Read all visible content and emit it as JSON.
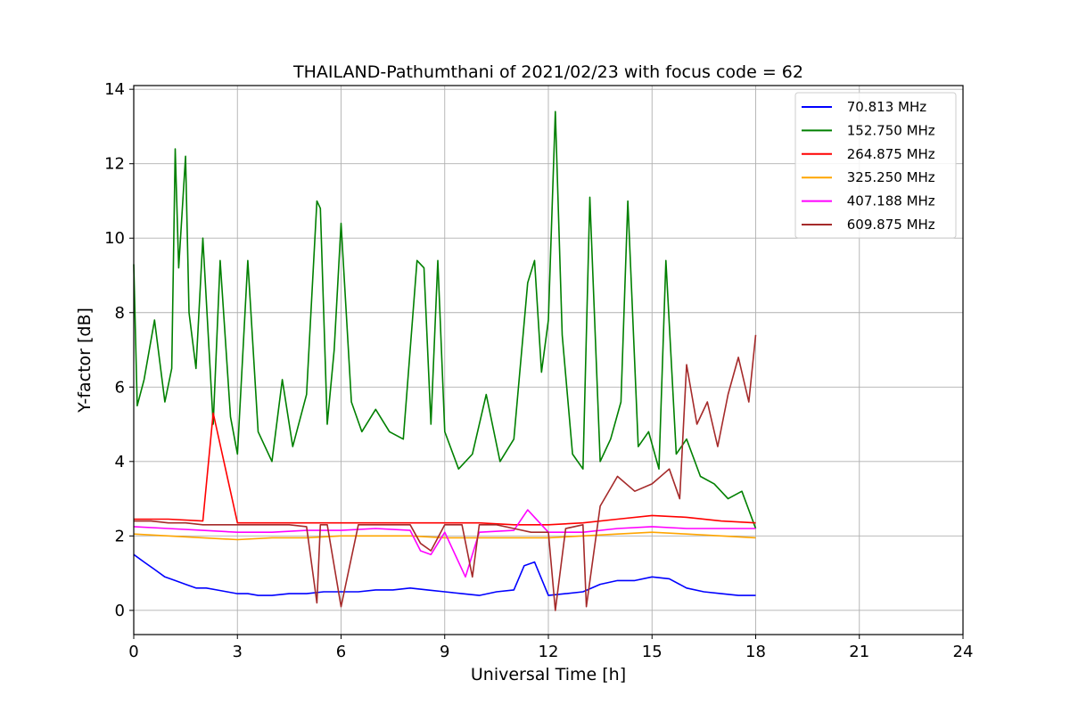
{
  "chart_data": {
    "type": "line",
    "title": "THAILAND-Pathumthani of 2021/02/23 with focus code = 62",
    "xlabel": "Universal Time [h]",
    "ylabel": "Y-factor [dB]",
    "xlim": [
      0,
      24
    ],
    "ylim": [
      -0.65,
      14.1
    ],
    "xticks": [
      0,
      3,
      6,
      9,
      12,
      15,
      18,
      21,
      24
    ],
    "yticks": [
      0,
      2,
      4,
      6,
      8,
      10,
      12,
      14
    ],
    "grid": true,
    "legend_position": "top-right",
    "series": [
      {
        "name": " 70.813 MHz",
        "color": "#0000ff",
        "x": [
          0,
          0.3,
          0.6,
          0.9,
          1.2,
          1.5,
          1.8,
          2.1,
          2.4,
          2.7,
          3.0,
          3.3,
          3.6,
          4.0,
          4.5,
          5.0,
          5.5,
          6.0,
          6.5,
          7.0,
          7.5,
          8.0,
          8.5,
          9.0,
          9.5,
          10.0,
          10.5,
          11.0,
          11.3,
          11.6,
          12.0,
          12.5,
          13.0,
          13.5,
          14.0,
          14.5,
          15.0,
          15.5,
          16.0,
          16.5,
          17.0,
          17.5,
          18.0
        ],
        "y": [
          1.5,
          1.3,
          1.1,
          0.9,
          0.8,
          0.7,
          0.6,
          0.6,
          0.55,
          0.5,
          0.45,
          0.45,
          0.4,
          0.4,
          0.45,
          0.45,
          0.5,
          0.5,
          0.5,
          0.55,
          0.55,
          0.6,
          0.55,
          0.5,
          0.45,
          0.4,
          0.5,
          0.55,
          1.2,
          1.3,
          0.4,
          0.45,
          0.5,
          0.7,
          0.8,
          0.8,
          0.9,
          0.85,
          0.6,
          0.5,
          0.45,
          0.4,
          0.4
        ]
      },
      {
        "name": " 152.750 MHz",
        "color": "#008000",
        "x": [
          0,
          0.1,
          0.3,
          0.6,
          0.9,
          1.1,
          1.2,
          1.3,
          1.5,
          1.6,
          1.8,
          2.0,
          2.3,
          2.5,
          2.8,
          3.0,
          3.3,
          3.6,
          4.0,
          4.3,
          4.6,
          5.0,
          5.3,
          5.4,
          5.6,
          5.8,
          6.0,
          6.3,
          6.6,
          7.0,
          7.4,
          7.8,
          8.2,
          8.4,
          8.6,
          8.8,
          9.0,
          9.4,
          9.8,
          10.2,
          10.6,
          11.0,
          11.4,
          11.6,
          11.8,
          12.0,
          12.2,
          12.4,
          12.7,
          13.0,
          13.2,
          13.5,
          13.8,
          14.1,
          14.3,
          14.6,
          14.9,
          15.2,
          15.4,
          15.7,
          16.0,
          16.4,
          16.8,
          17.2,
          17.6,
          18.0
        ],
        "y": [
          9.3,
          5.5,
          6.2,
          7.8,
          5.6,
          6.5,
          12.4,
          9.2,
          12.2,
          8.0,
          6.5,
          10.0,
          5.0,
          9.4,
          5.2,
          4.2,
          9.4,
          4.8,
          4.0,
          6.2,
          4.4,
          5.8,
          11.0,
          10.8,
          5.0,
          7.0,
          10.4,
          5.6,
          4.8,
          5.4,
          4.8,
          4.6,
          9.4,
          9.2,
          5.0,
          9.4,
          4.8,
          3.8,
          4.2,
          5.8,
          4.0,
          4.6,
          8.8,
          9.4,
          6.4,
          7.8,
          13.4,
          7.4,
          4.2,
          3.8,
          11.1,
          4.0,
          4.6,
          5.6,
          11.0,
          4.4,
          4.8,
          3.8,
          9.4,
          4.2,
          4.6,
          3.6,
          3.4,
          3.0,
          3.2,
          2.2
        ]
      },
      {
        "name": " 264.875 MHz",
        "color": "#ff0000",
        "x": [
          0,
          1.0,
          2.0,
          2.3,
          3.0,
          4.0,
          5.0,
          6.0,
          7.0,
          8.0,
          9.0,
          10.0,
          11.0,
          12.0,
          13.0,
          14.0,
          15.0,
          16.0,
          17.0,
          18.0
        ],
        "y": [
          2.45,
          2.45,
          2.4,
          5.3,
          2.35,
          2.35,
          2.35,
          2.35,
          2.35,
          2.35,
          2.35,
          2.35,
          2.3,
          2.3,
          2.35,
          2.45,
          2.55,
          2.5,
          2.4,
          2.35
        ]
      },
      {
        "name": " 325.250 MHz",
        "color": "#ffa500",
        "x": [
          0,
          1.0,
          2.0,
          3.0,
          4.0,
          5.0,
          6.0,
          7.0,
          8.0,
          9.0,
          10.0,
          11.0,
          12.0,
          13.0,
          14.0,
          15.0,
          16.0,
          17.0,
          18.0
        ],
        "y": [
          2.05,
          2.0,
          1.95,
          1.9,
          1.95,
          1.95,
          2.0,
          2.0,
          2.0,
          1.95,
          1.95,
          1.95,
          1.95,
          2.0,
          2.05,
          2.1,
          2.05,
          2.0,
          1.95
        ]
      },
      {
        "name": " 407.188 MHz",
        "color": "#ff00ff",
        "x": [
          0,
          1.0,
          2.0,
          3.0,
          4.0,
          5.0,
          6.0,
          7.0,
          8.0,
          8.3,
          8.6,
          9.0,
          9.6,
          10.0,
          11.0,
          11.4,
          12.0,
          13.0,
          14.0,
          15.0,
          16.0,
          17.0,
          18.0
        ],
        "y": [
          2.25,
          2.2,
          2.15,
          2.1,
          2.1,
          2.15,
          2.15,
          2.2,
          2.15,
          1.6,
          1.5,
          2.1,
          0.9,
          2.1,
          2.15,
          2.7,
          2.1,
          2.1,
          2.2,
          2.25,
          2.2,
          2.2,
          2.2
        ]
      },
      {
        "name": " 609.875 MHz",
        "color": "#a52a2a",
        "x": [
          0,
          0.5,
          1.0,
          1.5,
          2.0,
          2.5,
          3.0,
          3.5,
          4.0,
          4.5,
          5.0,
          5.3,
          5.4,
          5.6,
          6.0,
          6.5,
          7.0,
          7.5,
          8.0,
          8.3,
          8.6,
          9.0,
          9.5,
          9.8,
          10.0,
          10.5,
          11.0,
          11.5,
          12.0,
          12.2,
          12.5,
          13.0,
          13.1,
          13.5,
          14.0,
          14.5,
          15.0,
          15.5,
          15.8,
          16.0,
          16.3,
          16.6,
          16.9,
          17.2,
          17.5,
          17.8,
          18.0
        ],
        "y": [
          2.4,
          2.4,
          2.35,
          2.35,
          2.3,
          2.3,
          2.3,
          2.3,
          2.3,
          2.3,
          2.25,
          0.2,
          2.3,
          2.3,
          0.1,
          2.3,
          2.3,
          2.3,
          2.3,
          1.8,
          1.6,
          2.3,
          2.3,
          0.9,
          2.3,
          2.3,
          2.2,
          2.1,
          2.1,
          0.0,
          2.2,
          2.3,
          0.1,
          2.8,
          3.6,
          3.2,
          3.4,
          3.8,
          3.0,
          6.6,
          5.0,
          5.6,
          4.4,
          5.8,
          6.8,
          5.6,
          7.4
        ]
      }
    ]
  }
}
